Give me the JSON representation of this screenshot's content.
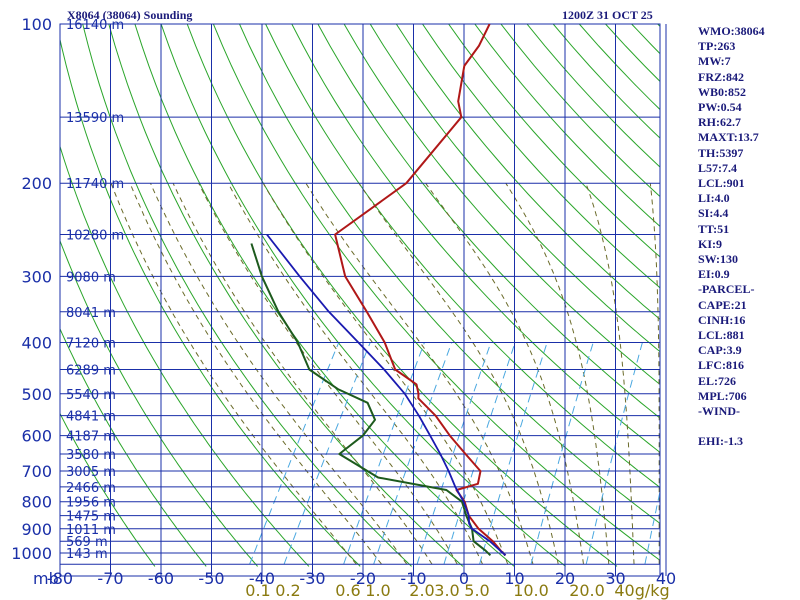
{
  "title_left": "X8064 (38064) Sounding",
  "title_right": "1200Z 31 OCT 25",
  "colors": {
    "grid": "#1a2fa8",
    "dry_adiabat": "#2aa52a",
    "moist_adiabat": "#6b6b2a",
    "mixing_ratio": "#4aa8e0",
    "temperature": "#b01818",
    "dewpoint": "#1d5a1d",
    "parcel": "#1a1ab0"
  },
  "indices": [
    "WMO:38064",
    "TP:263",
    "MW:7",
    "FRZ:842",
    "WB0:852",
    "PW:0.54",
    "RH:62.7",
    "MAXT:13.7",
    "TH:5397",
    "L57:7.4",
    "LCL:901",
    "LI:4.0",
    "SI:4.4",
    "TT:51",
    "KI:9",
    "SW:130",
    "EI:0.9",
    "-PARCEL-",
    "CAPE:21",
    "CINH:16",
    "LCL:881",
    "CAP:3.9",
    "LFC:816",
    "EL:726",
    "MPL:706",
    "-WIND-",
    "",
    "EHI:-1.3"
  ],
  "chart_data": {
    "type": "line",
    "subtype": "skew-t log-p sounding",
    "pressure_unit_label": "mb",
    "pressure_ticks": [
      100,
      200,
      300,
      400,
      500,
      600,
      700,
      800,
      900,
      1000
    ],
    "pressure_range": [
      100,
      1050
    ],
    "temperature_ticks": [
      -80,
      -70,
      -60,
      -50,
      -40,
      -30,
      -20,
      -10,
      0,
      10,
      20,
      30,
      40
    ],
    "temperature_range": [
      -80,
      40
    ],
    "mixing_ratio_labels": [
      "0.1",
      "0.2",
      "0.6",
      "1.0",
      "2.0",
      "3.0",
      "5.0",
      "10.0",
      "20.0",
      "40.0"
    ],
    "mixing_ratio_unit": "g/kg",
    "height_levels": [
      {
        "p": 100,
        "label": "16140 m"
      },
      {
        "p": 150,
        "label": "13590 m"
      },
      {
        "p": 200,
        "label": "11740 m"
      },
      {
        "p": 250,
        "label": "10280 m"
      },
      {
        "p": 300,
        "label": "9080 m"
      },
      {
        "p": 350,
        "label": "8041 m"
      },
      {
        "p": 400,
        "label": "7120 m"
      },
      {
        "p": 450,
        "label": "6289 m"
      },
      {
        "p": 500,
        "label": "5540 m"
      },
      {
        "p": 550,
        "label": "4841 m"
      },
      {
        "p": 600,
        "label": "4187 m"
      },
      {
        "p": 650,
        "label": "3580 m"
      },
      {
        "p": 700,
        "label": "3005 m"
      },
      {
        "p": 750,
        "label": "2466 m"
      },
      {
        "p": 800,
        "label": "1956 m"
      },
      {
        "p": 850,
        "label": "1475 m"
      },
      {
        "p": 900,
        "label": "1011 m"
      },
      {
        "p": 950,
        "label": "569 m"
      },
      {
        "p": 1000,
        "label": "143 m"
      }
    ],
    "series": [
      {
        "key": "temperature",
        "points": [
          [
            1010,
            8.5
          ],
          [
            990,
            7.0
          ],
          [
            950,
            4.3
          ],
          [
            900,
            0.0
          ],
          [
            850,
            -3.5
          ],
          [
            800,
            -6.0
          ],
          [
            760,
            -9.0
          ],
          [
            740,
            -5.5
          ],
          [
            700,
            -6.5
          ],
          [
            650,
            -11.5
          ],
          [
            600,
            -16.8
          ],
          [
            550,
            -22.0
          ],
          [
            510,
            -27.5
          ],
          [
            500,
            -28.0
          ],
          [
            480,
            -29.5
          ],
          [
            450,
            -35.5
          ],
          [
            400,
            -40.8
          ],
          [
            350,
            -48.0
          ],
          [
            300,
            -56.5
          ],
          [
            250,
            -63.5
          ],
          [
            200,
            -55.5
          ],
          [
            150,
            -52.5
          ],
          [
            140,
            -55.0
          ],
          [
            120,
            -58.0
          ],
          [
            110,
            -57.5
          ],
          [
            100,
            -58.0
          ]
        ]
      },
      {
        "key": "dewpoint",
        "points": [
          [
            1010,
            5.5
          ],
          [
            990,
            4.0
          ],
          [
            950,
            0.5
          ],
          [
            900,
            -1.3
          ],
          [
            850,
            -4.0
          ],
          [
            800,
            -6.5
          ],
          [
            760,
            -11.0
          ],
          [
            720,
            -26.0
          ],
          [
            650,
            -36.5
          ],
          [
            600,
            -34.0
          ],
          [
            560,
            -33.5
          ],
          [
            520,
            -37.0
          ],
          [
            490,
            -44.5
          ],
          [
            450,
            -52.5
          ],
          [
            400,
            -58.0
          ],
          [
            350,
            -65.5
          ],
          [
            300,
            -73.0
          ],
          [
            260,
            -79.0
          ]
        ]
      },
      {
        "key": "parcel",
        "points": [
          [
            1010,
            8.5
          ],
          [
            950,
            3.7
          ],
          [
            900,
            -1.3
          ],
          [
            880,
            -2.5
          ],
          [
            850,
            -3.5
          ],
          [
            800,
            -6.2
          ],
          [
            750,
            -9.6
          ],
          [
            700,
            -12.8
          ],
          [
            650,
            -16.5
          ],
          [
            600,
            -20.7
          ],
          [
            550,
            -25.3
          ],
          [
            500,
            -30.7
          ],
          [
            450,
            -37.7
          ],
          [
            400,
            -46.0
          ],
          [
            350,
            -55.5
          ],
          [
            300,
            -65.5
          ],
          [
            250,
            -77.0
          ]
        ]
      }
    ]
  }
}
